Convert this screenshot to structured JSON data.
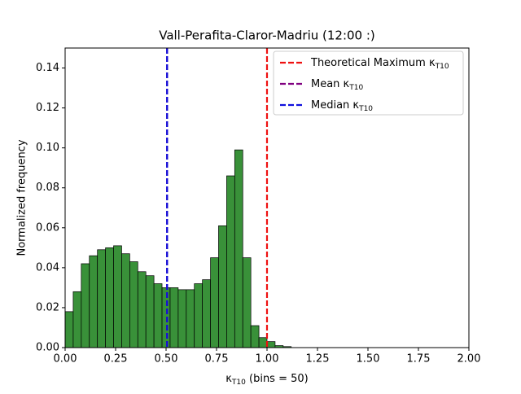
{
  "chart_data": {
    "type": "histogram",
    "title": "Vall-Perafita-Claror-Madriu (12:00 :)",
    "xlabel": {
      "symbol": "κ",
      "subscript": "T10",
      "suffix": " (bins = 50)"
    },
    "ylabel": "Normalized frequency",
    "bins": [
      0,
      0.04,
      0.08,
      0.12,
      0.16,
      0.2,
      0.24,
      0.28,
      0.32,
      0.36,
      0.4,
      0.44,
      0.48,
      0.52,
      0.56,
      0.6,
      0.64,
      0.68,
      0.72,
      0.76,
      0.8,
      0.84,
      0.88,
      0.92,
      0.96,
      1.0,
      1.04,
      1.08,
      1.12,
      1.16,
      1.2,
      1.24,
      1.28,
      1.32,
      1.36,
      1.4,
      1.44,
      1.48,
      1.52,
      1.56,
      1.6,
      1.64,
      1.68,
      1.72,
      1.76,
      1.8,
      1.84,
      1.88,
      1.92,
      1.96,
      2.0
    ],
    "values": [
      0.018,
      0.028,
      0.042,
      0.046,
      0.049,
      0.05,
      0.051,
      0.047,
      0.043,
      0.038,
      0.036,
      0.032,
      0.03,
      0.03,
      0.029,
      0.029,
      0.032,
      0.034,
      0.045,
      0.061,
      0.086,
      0.099,
      0.045,
      0.011,
      0.005,
      0.003,
      0.001,
      0.0005,
      0,
      0,
      0,
      0,
      0,
      0,
      0,
      0,
      0,
      0,
      0,
      0,
      0,
      0,
      0,
      0,
      0,
      0,
      0,
      0,
      0,
      0
    ],
    "color": "#2e8b2e",
    "xlim": [
      0,
      2
    ],
    "ylim": [
      0,
      0.15
    ],
    "xticks": [
      {
        "value": 0,
        "label": "0.00"
      },
      {
        "value": 0.25,
        "label": "0.25"
      },
      {
        "value": 0.5,
        "label": "0.50"
      },
      {
        "value": 0.75,
        "label": "0.75"
      },
      {
        "value": 1,
        "label": "1.00"
      },
      {
        "value": 1.25,
        "label": "1.25"
      },
      {
        "value": 1.5,
        "label": "1.50"
      },
      {
        "value": 1.75,
        "label": "1.75"
      },
      {
        "value": 2,
        "label": "2.00"
      }
    ],
    "yticks": [
      {
        "value": 0,
        "label": "0.00"
      },
      {
        "value": 0.02,
        "label": "0.02"
      },
      {
        "value": 0.04,
        "label": "0.04"
      },
      {
        "value": 0.06,
        "label": "0.06"
      },
      {
        "value": 0.08,
        "label": "0.08"
      },
      {
        "value": 0.1,
        "label": "0.10"
      },
      {
        "value": 0.12,
        "label": "0.12"
      },
      {
        "value": 0.14,
        "label": "0.14"
      }
    ],
    "vlines": [
      {
        "name": "Theoretical Maximum κ",
        "subscript": "T10",
        "color": "#ee1111",
        "x": 1.0
      },
      {
        "name": "Mean κ",
        "subscript": "T10",
        "color": "#800080",
        "x": 0.505
      },
      {
        "name": "Median κ",
        "subscript": "T10",
        "color": "#1010dd",
        "x": 0.505
      }
    ],
    "legend": "upper right"
  }
}
